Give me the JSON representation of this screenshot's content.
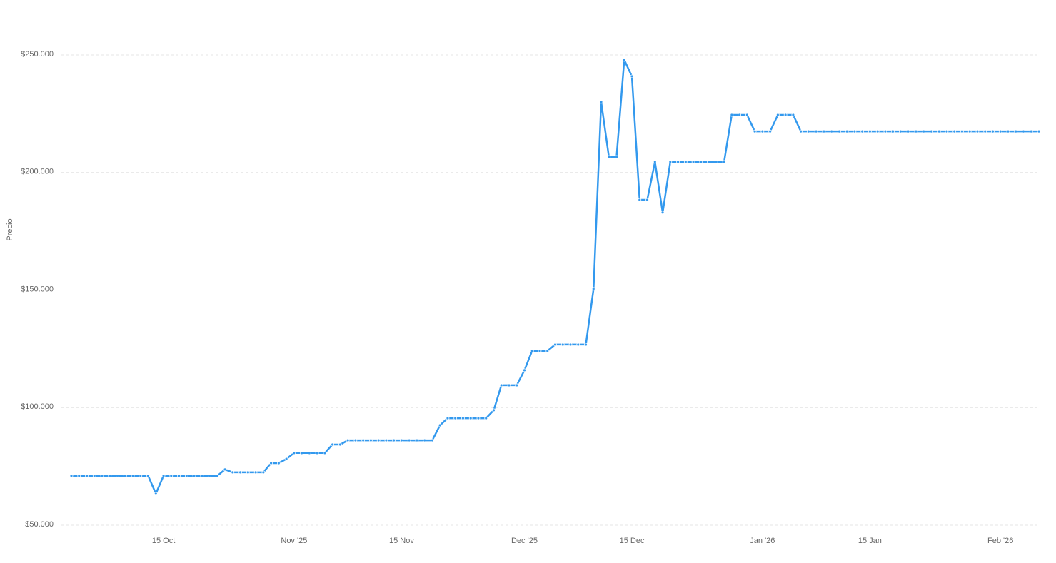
{
  "chart_data": {
    "type": "line",
    "y_label": "Precio",
    "x": [
      "2025-10-03",
      "2025-10-04",
      "2025-10-05",
      "2025-10-06",
      "2025-10-07",
      "2025-10-08",
      "2025-10-09",
      "2025-10-10",
      "2025-10-11",
      "2025-10-12",
      "2025-10-13",
      "2025-10-14",
      "2025-10-15",
      "2025-10-16",
      "2025-10-17",
      "2025-10-18",
      "2025-10-19",
      "2025-10-20",
      "2025-10-21",
      "2025-10-22",
      "2025-10-23",
      "2025-10-24",
      "2025-10-25",
      "2025-10-26",
      "2025-10-27",
      "2025-10-28",
      "2025-10-29",
      "2025-10-30",
      "2025-10-31",
      "2025-11-01",
      "2025-11-02",
      "2025-11-03",
      "2025-11-04",
      "2025-11-05",
      "2025-11-06",
      "2025-11-07",
      "2025-11-08",
      "2025-11-09",
      "2025-11-10",
      "2025-11-11",
      "2025-11-12",
      "2025-11-13",
      "2025-11-14",
      "2025-11-15",
      "2025-11-16",
      "2025-11-17",
      "2025-11-18",
      "2025-11-19",
      "2025-11-20",
      "2025-11-21",
      "2025-11-22",
      "2025-11-23",
      "2025-11-24",
      "2025-11-25",
      "2025-11-26",
      "2025-11-27",
      "2025-11-28",
      "2025-11-29",
      "2025-11-30",
      "2025-12-01",
      "2025-12-02",
      "2025-12-03",
      "2025-12-04",
      "2025-12-05",
      "2025-12-06",
      "2025-12-07",
      "2025-12-08",
      "2025-12-09",
      "2025-12-10",
      "2025-12-11",
      "2025-12-12",
      "2025-12-13",
      "2025-12-14",
      "2025-12-15",
      "2025-12-16",
      "2025-12-17",
      "2025-12-18",
      "2025-12-19",
      "2025-12-20",
      "2025-12-21",
      "2025-12-22",
      "2025-12-23",
      "2025-12-24",
      "2025-12-25",
      "2025-12-26",
      "2025-12-27",
      "2025-12-28",
      "2025-12-29",
      "2025-12-30",
      "2025-12-31",
      "2026-01-01",
      "2026-01-02",
      "2026-01-03",
      "2026-01-04",
      "2026-01-05",
      "2026-01-06",
      "2026-01-07",
      "2026-01-08",
      "2026-01-09",
      "2026-01-10",
      "2026-01-11",
      "2026-01-12",
      "2026-01-13",
      "2026-01-14",
      "2026-01-15",
      "2026-01-16",
      "2026-01-17",
      "2026-01-18",
      "2026-01-19",
      "2026-01-20",
      "2026-01-21",
      "2026-01-22",
      "2026-01-23",
      "2026-01-24",
      "2026-01-25",
      "2026-01-26",
      "2026-01-27",
      "2026-01-28",
      "2026-01-29",
      "2026-01-30",
      "2026-01-31",
      "2026-02-01",
      "2026-02-02",
      "2026-02-03",
      "2026-02-04",
      "2026-02-05",
      "2026-02-06"
    ],
    "series": [
      {
        "color": "#3399ee",
        "values": [
          71000,
          71000,
          71000,
          71000,
          71000,
          71000,
          71000,
          71000,
          71000,
          71000,
          71000,
          63400,
          71000,
          71000,
          71000,
          71000,
          71000,
          71000,
          71000,
          71000,
          73700,
          72500,
          72500,
          72500,
          72500,
          72500,
          76400,
          76400,
          78200,
          80700,
          80700,
          80700,
          80700,
          80700,
          84300,
          84300,
          86100,
          86100,
          86100,
          86100,
          86100,
          86100,
          86100,
          86100,
          86100,
          86100,
          86100,
          86100,
          92500,
          95500,
          95500,
          95500,
          95500,
          95500,
          95500,
          98900,
          109500,
          109500,
          109500,
          115900,
          124100,
          124100,
          124100,
          126800,
          126800,
          126800,
          126800,
          126800,
          150500,
          230000,
          206600,
          206600,
          247900,
          240900,
          188400,
          188400,
          204500,
          183000,
          204500,
          204500,
          204500,
          204500,
          204500,
          204500,
          204500,
          204500,
          224500,
          224500,
          224500,
          217500,
          217500,
          217500,
          224500,
          224500,
          224500,
          217500,
          217500,
          217500,
          217500,
          217500,
          217500,
          217500,
          217500,
          217500,
          217500,
          217500,
          217500,
          217500,
          217500,
          217500,
          217500,
          217500,
          217500,
          217500,
          217500,
          217500,
          217500,
          217500,
          217500,
          217500,
          217500,
          217500,
          217500,
          217500,
          217500,
          217500,
          217500
        ]
      }
    ],
    "xlim": [
      "2025-10-03",
      "2026-02-06"
    ],
    "xticks": [
      {
        "value": "2025-10-15",
        "label": "15 Oct"
      },
      {
        "value": "2025-11-01",
        "label": "Nov '25"
      },
      {
        "value": "2025-11-15",
        "label": "15 Nov"
      },
      {
        "value": "2025-12-01",
        "label": "Dec '25"
      },
      {
        "value": "2025-12-15",
        "label": "15 Dec"
      },
      {
        "value": "2026-01-01",
        "label": "Jan '26"
      },
      {
        "value": "2026-01-15",
        "label": "15 Jan"
      },
      {
        "value": "2026-02-01",
        "label": "Feb '26"
      }
    ],
    "ylim": [
      50000,
      250000
    ],
    "yticks": [
      {
        "value": 50000,
        "label": "$50.000"
      },
      {
        "value": 100000,
        "label": "$100.000"
      },
      {
        "value": 150000,
        "label": "$150.000"
      },
      {
        "value": 200000,
        "label": "$200.000"
      },
      {
        "value": 250000,
        "label": "$250.000"
      }
    ],
    "grid": true
  }
}
